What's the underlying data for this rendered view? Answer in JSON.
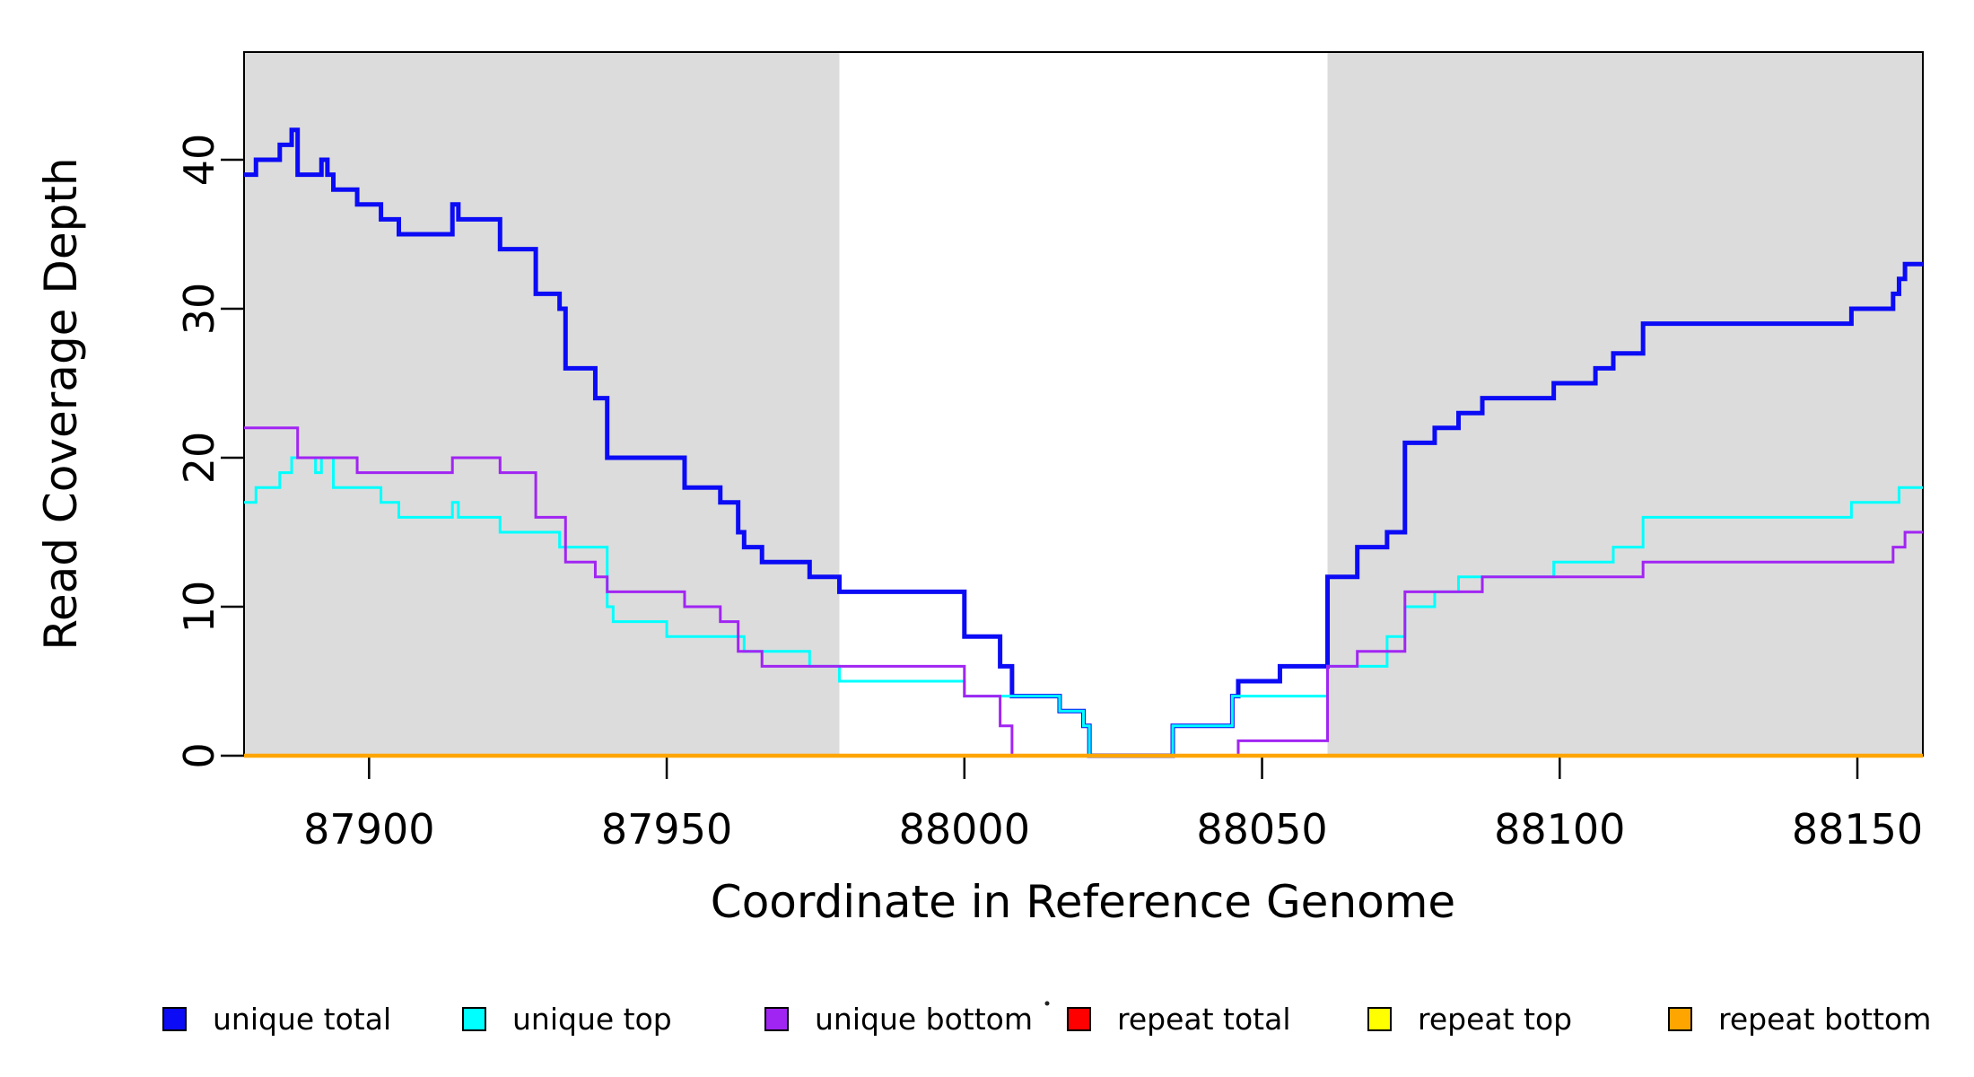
{
  "chart_data": {
    "type": "line",
    "subtype": "step-coverage-plot",
    "title": "",
    "xlabel": "Coordinate in Reference Genome",
    "ylabel": "Read Coverage Depth",
    "xlim": [
      87879,
      88161
    ],
    "ylim": [
      0,
      47.2
    ],
    "grid": false,
    "x_ticks": [
      {
        "value": 87900,
        "label": "87900"
      },
      {
        "value": 87950,
        "label": "87950"
      },
      {
        "value": 88000,
        "label": "88000"
      },
      {
        "value": 88050,
        "label": "88050"
      },
      {
        "value": 88100,
        "label": "88100"
      },
      {
        "value": 88150,
        "label": "88150"
      }
    ],
    "y_ticks": [
      {
        "value": 0,
        "label": "0"
      },
      {
        "value": 10,
        "label": "10"
      },
      {
        "value": 20,
        "label": "20"
      },
      {
        "value": 30,
        "label": "30"
      },
      {
        "value": 40,
        "label": "40"
      }
    ],
    "shaded_regions": [
      {
        "from": 87879,
        "to": 87979,
        "color": "#DCDCDC",
        "meaning": "unique region (left)"
      },
      {
        "from": 88061,
        "to": 88161,
        "color": "#DCDCDC",
        "meaning": "unique region (right)"
      }
    ],
    "series": [
      {
        "name": "unique total",
        "color": "#0B0BF5",
        "stroke_width": 5,
        "steps": [
          [
            87879,
            39
          ],
          [
            87881,
            40
          ],
          [
            87885,
            41
          ],
          [
            87887,
            42
          ],
          [
            87888,
            39
          ],
          [
            87892,
            40
          ],
          [
            87893,
            39
          ],
          [
            87894,
            38
          ],
          [
            87898,
            37
          ],
          [
            87902,
            36
          ],
          [
            87905,
            35
          ],
          [
            87914,
            37
          ],
          [
            87915,
            36
          ],
          [
            87922,
            34
          ],
          [
            87928,
            31
          ],
          [
            87932,
            30
          ],
          [
            87933,
            26
          ],
          [
            87938,
            24
          ],
          [
            87940,
            20
          ],
          [
            87953,
            18
          ],
          [
            87959,
            17
          ],
          [
            87962,
            15
          ],
          [
            87963,
            14
          ],
          [
            87966,
            13
          ],
          [
            87974,
            12
          ],
          [
            87979,
            11
          ],
          [
            88000,
            8
          ],
          [
            88006,
            6
          ],
          [
            88008,
            4
          ],
          [
            88016,
            3
          ],
          [
            88020,
            2
          ],
          [
            88021,
            0
          ],
          [
            88035,
            2
          ],
          [
            88045,
            4
          ],
          [
            88046,
            5
          ],
          [
            88053,
            6
          ],
          [
            88061,
            12
          ],
          [
            88066,
            14
          ],
          [
            88071,
            15
          ],
          [
            88074,
            21
          ],
          [
            88079,
            22
          ],
          [
            88083,
            23
          ],
          [
            88087,
            24
          ],
          [
            88099,
            25
          ],
          [
            88106,
            26
          ],
          [
            88109,
            27
          ],
          [
            88114,
            29
          ],
          [
            88149,
            30
          ],
          [
            88156,
            31
          ],
          [
            88157,
            32
          ],
          [
            88158,
            33
          ]
        ]
      },
      {
        "name": "unique top",
        "color": "#00FFFF",
        "stroke_width": 3,
        "steps": [
          [
            87879,
            17
          ],
          [
            87881,
            18
          ],
          [
            87885,
            19
          ],
          [
            87887,
            20
          ],
          [
            87891,
            19
          ],
          [
            87892,
            20
          ],
          [
            87894,
            18
          ],
          [
            87902,
            17
          ],
          [
            87905,
            16
          ],
          [
            87914,
            17
          ],
          [
            87915,
            16
          ],
          [
            87922,
            15
          ],
          [
            87932,
            14
          ],
          [
            87940,
            10
          ],
          [
            87941,
            9
          ],
          [
            87950,
            8
          ],
          [
            87963,
            7
          ],
          [
            87974,
            6
          ],
          [
            87979,
            5
          ],
          [
            88000,
            4
          ],
          [
            88016,
            3
          ],
          [
            88020,
            2
          ],
          [
            88021,
            0
          ],
          [
            88035,
            2
          ],
          [
            88045,
            4
          ],
          [
            88061,
            6
          ],
          [
            88071,
            8
          ],
          [
            88074,
            10
          ],
          [
            88079,
            11
          ],
          [
            88083,
            12
          ],
          [
            88099,
            13
          ],
          [
            88109,
            14
          ],
          [
            88114,
            16
          ],
          [
            88149,
            17
          ],
          [
            88157,
            18
          ]
        ]
      },
      {
        "name": "unique bottom",
        "color": "#A125F2",
        "stroke_width": 3,
        "steps": [
          [
            87879,
            22
          ],
          [
            87888,
            20
          ],
          [
            87898,
            19
          ],
          [
            87914,
            20
          ],
          [
            87922,
            19
          ],
          [
            87928,
            16
          ],
          [
            87933,
            13
          ],
          [
            87938,
            12
          ],
          [
            87940,
            11
          ],
          [
            87953,
            10
          ],
          [
            87959,
            9
          ],
          [
            87962,
            7
          ],
          [
            87966,
            6
          ],
          [
            88000,
            4
          ],
          [
            88006,
            2
          ],
          [
            88008,
            0
          ],
          [
            88046,
            1
          ],
          [
            88061,
            6
          ],
          [
            88066,
            7
          ],
          [
            88074,
            11
          ],
          [
            88087,
            12
          ],
          [
            88114,
            13
          ],
          [
            88156,
            14
          ],
          [
            88158,
            15
          ]
        ]
      },
      {
        "name": "repeat total",
        "color": "#FF0000",
        "stroke_width": 3,
        "steps": [
          [
            87879,
            0
          ]
        ]
      },
      {
        "name": "repeat top",
        "color": "#FFFF00",
        "stroke_width": 3,
        "steps": [
          [
            87879,
            0
          ]
        ]
      },
      {
        "name": "repeat bottom",
        "color": "#FFA500",
        "stroke_width": 4.5,
        "steps": [
          [
            87879,
            0
          ]
        ]
      }
    ],
    "legend": {
      "position": "bottom",
      "items": [
        {
          "label": "unique total",
          "color": "#0B0BF5"
        },
        {
          "label": "unique top",
          "color": "#00FFFF"
        },
        {
          "label": "unique bottom",
          "color": "#A125F2"
        },
        {
          "label": "repeat total",
          "color": "#FF0000"
        },
        {
          "label": "repeat top",
          "color": "#FFFF00"
        },
        {
          "label": "repeat bottom",
          "color": "#FFA500"
        }
      ]
    }
  }
}
